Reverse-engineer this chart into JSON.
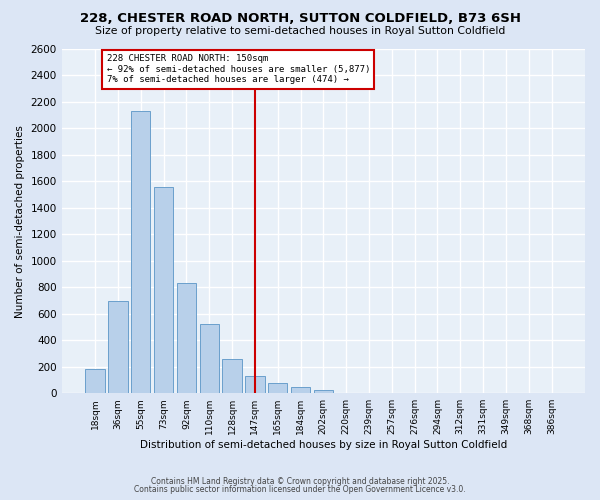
{
  "title": "228, CHESTER ROAD NORTH, SUTTON COLDFIELD, B73 6SH",
  "subtitle": "Size of property relative to semi-detached houses in Royal Sutton Coldfield",
  "xlabel": "Distribution of semi-detached houses by size in Royal Sutton Coldfield",
  "ylabel": "Number of semi-detached properties",
  "categories": [
    "18sqm",
    "36sqm",
    "55sqm",
    "73sqm",
    "92sqm",
    "110sqm",
    "128sqm",
    "147sqm",
    "165sqm",
    "184sqm",
    "202sqm",
    "220sqm",
    "239sqm",
    "257sqm",
    "276sqm",
    "294sqm",
    "312sqm",
    "331sqm",
    "349sqm",
    "368sqm",
    "386sqm"
  ],
  "values": [
    180,
    700,
    2130,
    1560,
    830,
    520,
    255,
    130,
    75,
    50,
    25,
    5,
    0,
    0,
    0,
    5,
    0,
    0,
    0,
    0,
    0
  ],
  "bar_color": "#b8d0ea",
  "bar_edge_color": "#6aa0cc",
  "vline_color": "#cc0000",
  "vline_index": 7,
  "annotation_title": "228 CHESTER ROAD NORTH: 150sqm",
  "annotation_line1": "← 92% of semi-detached houses are smaller (5,877)",
  "annotation_line2": "7% of semi-detached houses are larger (474) →",
  "annotation_box_color": "#ffffff",
  "annotation_box_edge": "#cc0000",
  "ylim": [
    0,
    2600
  ],
  "yticks": [
    0,
    200,
    400,
    600,
    800,
    1000,
    1200,
    1400,
    1600,
    1800,
    2000,
    2200,
    2400,
    2600
  ],
  "background_color": "#dce6f5",
  "plot_bg_color": "#e8f0f8",
  "grid_color": "#ffffff",
  "footer1": "Contains HM Land Registry data © Crown copyright and database right 2025.",
  "footer2": "Contains public sector information licensed under the Open Government Licence v3.0."
}
